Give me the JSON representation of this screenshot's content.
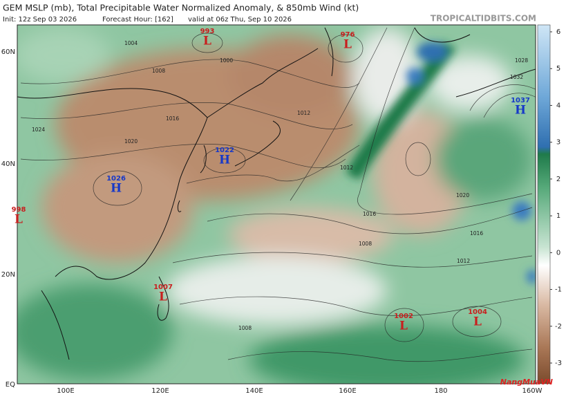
{
  "header": {
    "title": "GEM MSLP (mb), Total Precipitable Water Normalized Anomaly, & 850mb Wind (kt)",
    "init": "Init: 12z Sep 03 2026",
    "forecast_hour": "Forecast Hour: [162]",
    "valid": "valid at 06z Thu, Sep 10 2026",
    "site": "TROPICALTIDBITS.COM"
  },
  "lat_labels": [
    "60N",
    "40N",
    "20N",
    "EQ"
  ],
  "lon_labels": [
    "100E",
    "120E",
    "140E",
    "160E",
    "180",
    "160W"
  ],
  "centers": [
    {
      "value": 993,
      "letter": "L"
    },
    {
      "value": 976,
      "letter": "L"
    },
    {
      "value": 1037,
      "letter": "H"
    },
    {
      "value": 1022,
      "letter": "H"
    },
    {
      "value": 1026,
      "letter": "H"
    },
    {
      "value": 998,
      "letter": "L"
    },
    {
      "value": 1007,
      "letter": "L"
    },
    {
      "value": 1002,
      "letter": "L"
    },
    {
      "value": 1004,
      "letter": "L"
    }
  ],
  "isobar_labels": [
    1004,
    1008,
    1012,
    1016,
    1020,
    1024,
    1028,
    1032,
    1000,
    1012,
    1016,
    1008,
    1008,
    1012,
    1016,
    1020
  ],
  "colorbar": {
    "ticks": [
      -3,
      -2,
      -1,
      0,
      1,
      2,
      3,
      4,
      5,
      6
    ]
  },
  "watermark": "NangMuaVN"
}
